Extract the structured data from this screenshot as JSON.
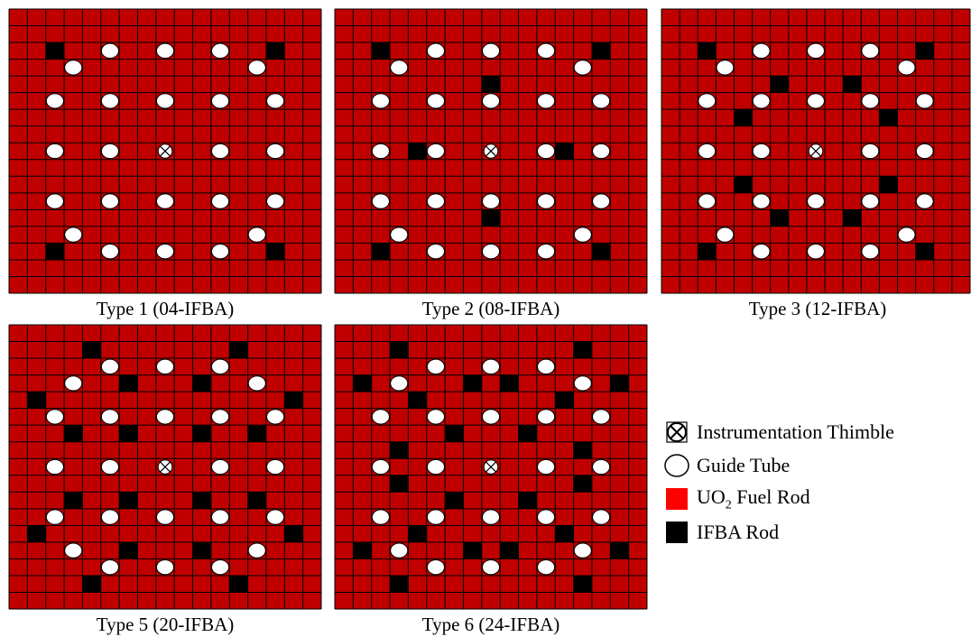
{
  "colors": {
    "fuel": "#c00000",
    "grid_line": "#000000",
    "ifba": "#000000",
    "guide_tube": "#ffffff",
    "legend_fuel": "#ff0000"
  },
  "lattice_size": 17,
  "guide_tubes": [
    [
      2,
      5
    ],
    [
      2,
      8
    ],
    [
      2,
      11
    ],
    [
      3,
      3
    ],
    [
      3,
      13
    ],
    [
      5,
      2
    ],
    [
      5,
      5
    ],
    [
      5,
      8
    ],
    [
      5,
      11
    ],
    [
      5,
      14
    ],
    [
      8,
      2
    ],
    [
      8,
      5
    ],
    [
      8,
      11
    ],
    [
      8,
      14
    ],
    [
      11,
      2
    ],
    [
      11,
      5
    ],
    [
      11,
      8
    ],
    [
      11,
      11
    ],
    [
      11,
      14
    ],
    [
      13,
      3
    ],
    [
      13,
      13
    ],
    [
      14,
      5
    ],
    [
      14,
      8
    ],
    [
      14,
      11
    ]
  ],
  "instrumentation_thimble": [
    8,
    8
  ],
  "assemblies": [
    {
      "id": "type1",
      "caption": "Type 1 (04-IFBA)",
      "ifba": [
        [
          2,
          2
        ],
        [
          2,
          14
        ],
        [
          14,
          2
        ],
        [
          14,
          14
        ]
      ]
    },
    {
      "id": "type2",
      "caption": "Type 2 (08-IFBA)",
      "ifba": [
        [
          2,
          2
        ],
        [
          2,
          14
        ],
        [
          14,
          2
        ],
        [
          14,
          14
        ],
        [
          4,
          8
        ],
        [
          12,
          8
        ],
        [
          8,
          4
        ],
        [
          8,
          12
        ]
      ]
    },
    {
      "id": "type3",
      "caption": "Type 3 (12-IFBA)",
      "ifba": [
        [
          2,
          2
        ],
        [
          2,
          14
        ],
        [
          14,
          2
        ],
        [
          14,
          14
        ],
        [
          4,
          6
        ],
        [
          4,
          10
        ],
        [
          6,
          4
        ],
        [
          6,
          12
        ],
        [
          10,
          4
        ],
        [
          10,
          12
        ],
        [
          12,
          6
        ],
        [
          12,
          10
        ]
      ]
    },
    {
      "id": "type5",
      "caption": "Type 5 (20-IFBA)",
      "ifba": [
        [
          1,
          4
        ],
        [
          1,
          12
        ],
        [
          4,
          1
        ],
        [
          4,
          15
        ],
        [
          3,
          6
        ],
        [
          3,
          10
        ],
        [
          6,
          3
        ],
        [
          6,
          6
        ],
        [
          6,
          10
        ],
        [
          6,
          13
        ],
        [
          10,
          3
        ],
        [
          10,
          6
        ],
        [
          10,
          10
        ],
        [
          10,
          13
        ],
        [
          13,
          6
        ],
        [
          13,
          10
        ],
        [
          12,
          1
        ],
        [
          12,
          15
        ],
        [
          15,
          4
        ],
        [
          15,
          12
        ]
      ]
    },
    {
      "id": "type6",
      "caption": "Type 6 (24-IFBA)",
      "ifba": [
        [
          1,
          3
        ],
        [
          1,
          13
        ],
        [
          3,
          1
        ],
        [
          3,
          7
        ],
        [
          3,
          9
        ],
        [
          3,
          15
        ],
        [
          4,
          4
        ],
        [
          4,
          12
        ],
        [
          6,
          6
        ],
        [
          6,
          10
        ],
        [
          7,
          3
        ],
        [
          7,
          13
        ],
        [
          9,
          3
        ],
        [
          9,
          13
        ],
        [
          10,
          6
        ],
        [
          10,
          10
        ],
        [
          12,
          4
        ],
        [
          12,
          12
        ],
        [
          13,
          1
        ],
        [
          13,
          7
        ],
        [
          13,
          9
        ],
        [
          13,
          15
        ],
        [
          15,
          3
        ],
        [
          15,
          13
        ]
      ]
    }
  ],
  "legend": {
    "items": [
      {
        "id": "thimble",
        "label": "Instrumentation Thimble"
      },
      {
        "id": "guide",
        "label": "Guide Tube"
      },
      {
        "id": "fuel",
        "label_prefix": "UO",
        "label_sub": "2",
        "label_suffix": " Fuel Rod"
      },
      {
        "id": "ifba",
        "label": "IFBA Rod"
      }
    ]
  }
}
